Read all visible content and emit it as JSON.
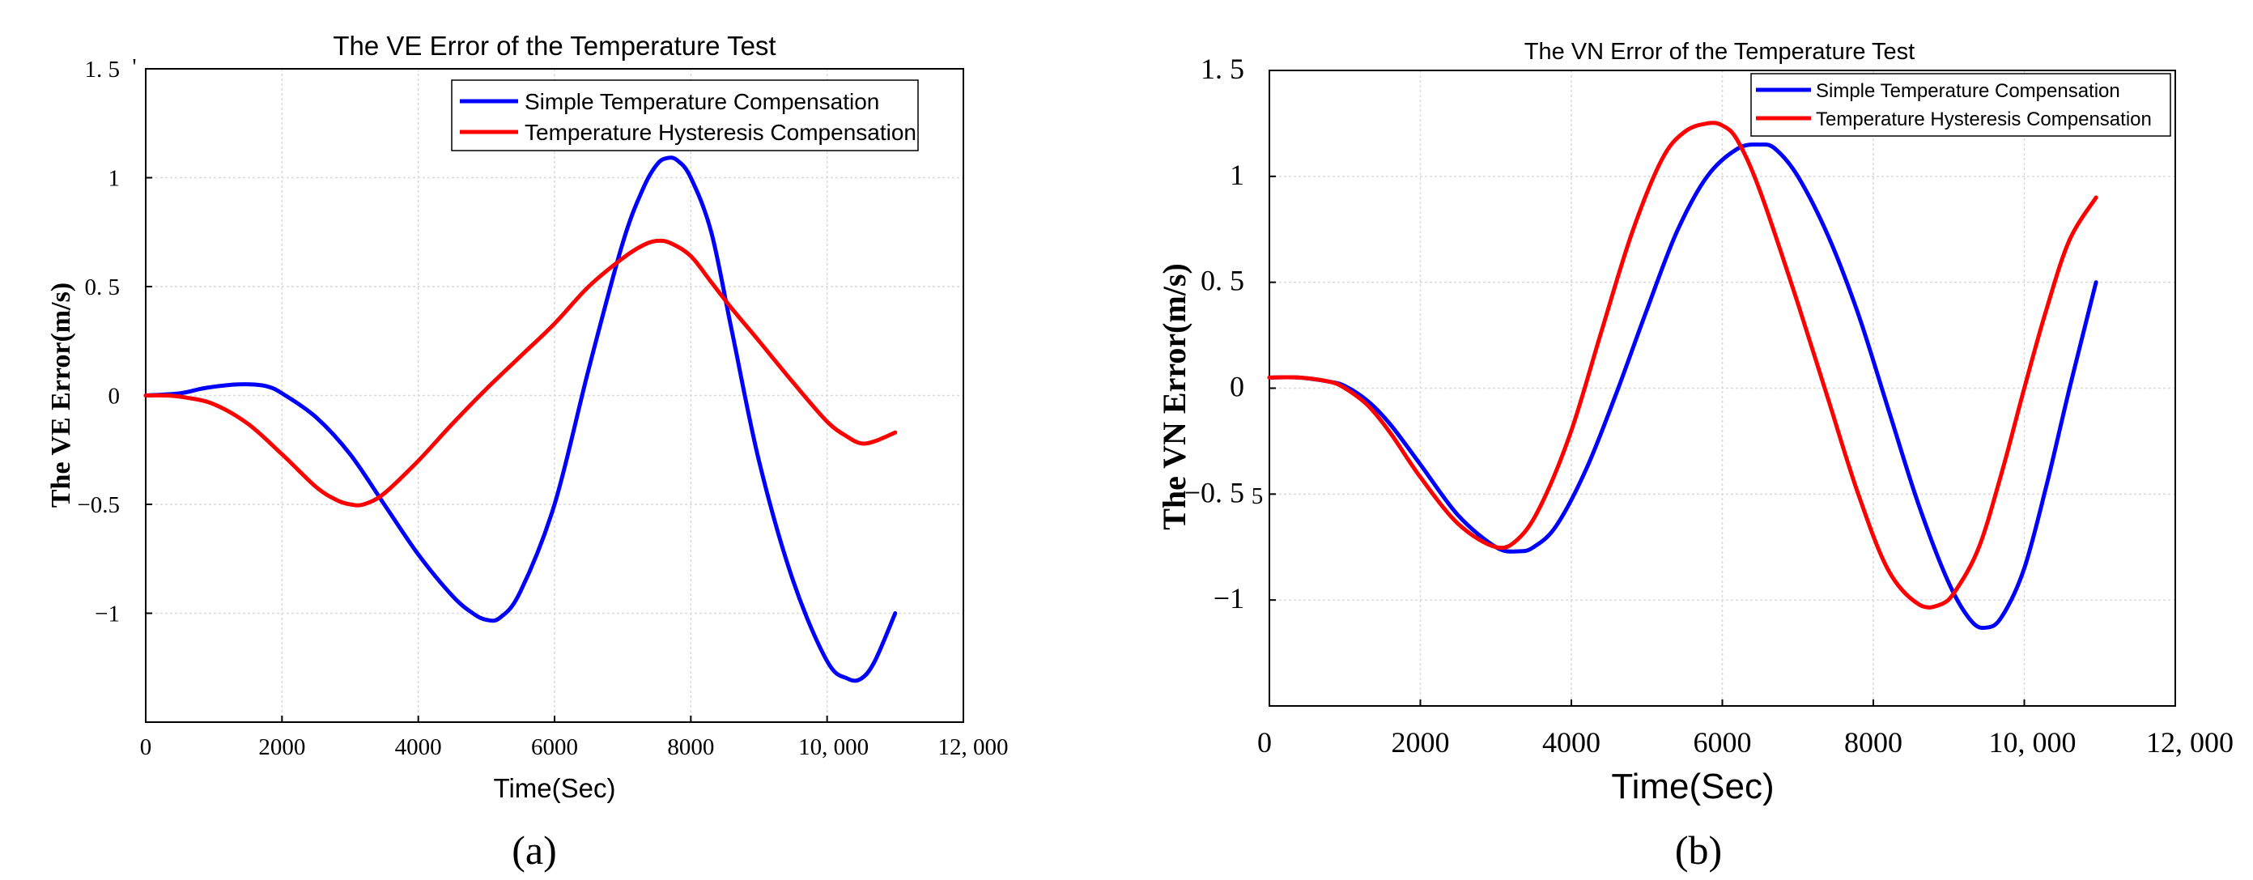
{
  "chart_data": [
    {
      "type": "line",
      "panel": "a",
      "title": "The VE Error of the Temperature Test",
      "xlabel": "Time(Sec)",
      "ylabel": "The VE Error(m/s)",
      "xlim": [
        0,
        12000
      ],
      "ylim": [
        -1.5,
        1.5
      ],
      "xticks": [
        0,
        2000,
        4000,
        6000,
        8000,
        10000,
        12000
      ],
      "xtick_labels": [
        "0",
        "2000",
        "4000",
        "6000",
        "8000",
        "10, 000",
        "12, 000"
      ],
      "yticks": [
        -1,
        -0.5,
        0,
        0.5,
        1,
        1.5
      ],
      "ytick_labels": [
        "−1",
        "−0.5",
        "0",
        "0. 5",
        "1",
        "1. 5"
      ],
      "grid": true,
      "legend": "top-right",
      "series": [
        {
          "name": "Simple Temperature Compensation",
          "color": "#0000ff",
          "x": [
            0,
            500,
            800,
            1000,
            1300,
            1600,
            1800,
            2000,
            2500,
            3000,
            3500,
            4000,
            4500,
            4800,
            5000,
            5200,
            5500,
            6000,
            6500,
            7000,
            7300,
            7500,
            7650,
            7800,
            8000,
            8300,
            8600,
            9000,
            9500,
            10000,
            10300,
            10500,
            10700,
            11000
          ],
          "y": [
            0,
            0.01,
            0.03,
            0.04,
            0.05,
            0.05,
            0.04,
            0.01,
            -0.1,
            -0.27,
            -0.5,
            -0.73,
            -0.92,
            -1.0,
            -1.03,
            -1.02,
            -0.9,
            -0.5,
            0.12,
            0.7,
            0.95,
            1.06,
            1.09,
            1.08,
            1.0,
            0.75,
            0.3,
            -0.3,
            -0.85,
            -1.22,
            -1.3,
            -1.3,
            -1.22,
            -1.0
          ]
        },
        {
          "name": "Temperature Hysteresis Compensation",
          "color": "#ff0000",
          "x": [
            0,
            300,
            600,
            1000,
            1500,
            2000,
            2500,
            2800,
            3000,
            3200,
            3500,
            4000,
            4500,
            5000,
            5500,
            6000,
            6500,
            7000,
            7300,
            7500,
            7700,
            8000,
            8300,
            8600,
            9000,
            9500,
            10000,
            10300,
            10500,
            10700,
            11000
          ],
          "y": [
            0,
            0,
            -0.01,
            -0.04,
            -0.13,
            -0.27,
            -0.42,
            -0.48,
            -0.5,
            -0.5,
            -0.45,
            -0.3,
            -0.13,
            0.03,
            0.18,
            0.33,
            0.5,
            0.63,
            0.69,
            0.71,
            0.7,
            0.64,
            0.52,
            0.4,
            0.25,
            0.06,
            -0.12,
            -0.19,
            -0.22,
            -0.21,
            -0.17
          ]
        }
      ]
    },
    {
      "type": "line",
      "panel": "b",
      "title": "The VN Error of the Temperature Test",
      "xlabel": "Time(Sec)",
      "ylabel": "The VN Error(m/s)",
      "xlim": [
        0,
        12000
      ],
      "ylim": [
        -1.5,
        1.5
      ],
      "xticks": [
        0,
        2000,
        4000,
        6000,
        8000,
        10000,
        12000
      ],
      "xtick_labels": [
        "0",
        "2000",
        "4000",
        "6000",
        "8000",
        "10, 000",
        "12, 000"
      ],
      "yticks": [
        -1,
        -0.5,
        0,
        0.5,
        1,
        1.5
      ],
      "ytick_labels": [
        "−1",
        "−0. 5",
        "0",
        "0. 5",
        "1",
        "1. 5"
      ],
      "grid": true,
      "legend": "top-right",
      "series": [
        {
          "name": "Simple Temperature Compensation",
          "color": "#0000ff",
          "x": [
            0,
            400,
            800,
            1000,
            1300,
            1600,
            2000,
            2500,
            3000,
            3300,
            3500,
            3800,
            4200,
            4600,
            5000,
            5400,
            5800,
            6200,
            6500,
            6700,
            7000,
            7400,
            7800,
            8200,
            8600,
            9000,
            9300,
            9500,
            9700,
            10000,
            10300,
            10600,
            10950
          ],
          "y": [
            0.05,
            0.05,
            0.03,
            0.01,
            -0.06,
            -0.17,
            -0.36,
            -0.6,
            -0.75,
            -0.77,
            -0.75,
            -0.65,
            -0.38,
            -0.02,
            0.37,
            0.74,
            1.0,
            1.13,
            1.15,
            1.13,
            1.0,
            0.72,
            0.35,
            -0.1,
            -0.55,
            -0.92,
            -1.1,
            -1.13,
            -1.08,
            -0.85,
            -0.45,
            0.0,
            0.5
          ]
        },
        {
          "name": "Temperature Hysteresis Compensation",
          "color": "#ff0000",
          "x": [
            0,
            400,
            800,
            1000,
            1300,
            1600,
            2000,
            2500,
            3000,
            3300,
            3600,
            4000,
            4400,
            4800,
            5200,
            5500,
            5800,
            6000,
            6200,
            6500,
            7000,
            7400,
            7800,
            8200,
            8600,
            8900,
            9100,
            9400,
            9700,
            10000,
            10300,
            10600,
            10950
          ],
          "y": [
            0.05,
            0.05,
            0.03,
            0.0,
            -0.08,
            -0.21,
            -0.42,
            -0.64,
            -0.75,
            -0.71,
            -0.55,
            -0.2,
            0.27,
            0.73,
            1.08,
            1.21,
            1.25,
            1.24,
            1.17,
            0.93,
            0.4,
            -0.05,
            -0.5,
            -0.86,
            -1.02,
            -1.02,
            -0.95,
            -0.75,
            -0.4,
            0.0,
            0.38,
            0.7,
            0.9
          ]
        }
      ]
    }
  ],
  "panels": [
    "(a)",
    "(b)"
  ],
  "stray_tick_marks": [
    "'",
    "5"
  ]
}
